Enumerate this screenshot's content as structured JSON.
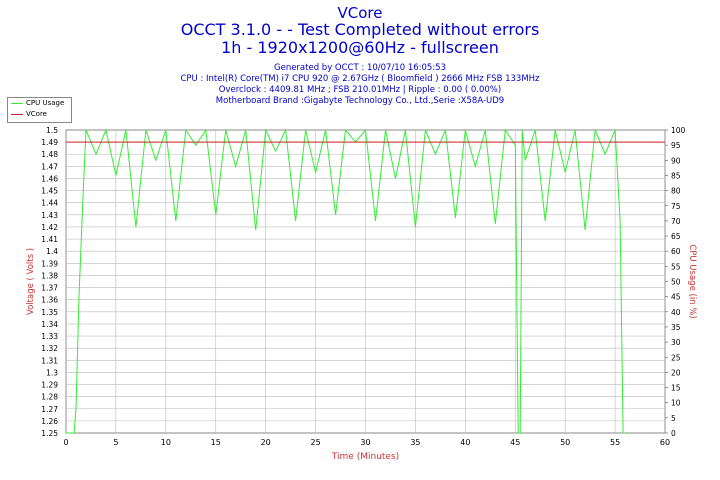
{
  "header": {
    "title": "VCore",
    "subtitle": "OCCT 3.1.0 -  - Test Completed without errors",
    "subtitle2": "1h - 1920x1200@60Hz - fullscreen"
  },
  "info": {
    "generated": "Generated by OCCT : 10/07/10 16:05:53",
    "cpu": "CPU : Intel(R) Core(TM) i7 CPU 920 @ 2.67GHz ( Bloomfield ) 2666 MHz FSB 133MHz",
    "overclock": "Overclock : 4409.81 MHz ; FSB 210.01MHz | Ripple : 0.00 ( 0.00%)",
    "motherboard": "Motherboard Brand :Gigabyte Technology Co., Ltd.,Serie :X58A-UD9"
  },
  "colors": {
    "cpu_usage": "#33ee33",
    "vcore": "#cc2222",
    "axis_label": "#cc3333",
    "grid": "#bbbbbb",
    "title": "#0000cc"
  },
  "chart_data": {
    "type": "line",
    "xlabel": "Time (Minutes)",
    "ylabel": "Voltage ( Volts )",
    "y2label": "CPU Usage (in %)",
    "xlim": [
      0,
      60
    ],
    "ylim": [
      1.25,
      1.5
    ],
    "y2lim": [
      0,
      100
    ],
    "x_ticks": [
      "0",
      "5",
      "10",
      "15",
      "20",
      "25",
      "30",
      "35",
      "40",
      "45",
      "50",
      "55",
      "60"
    ],
    "y_ticks": [
      "1.25",
      "1.26",
      "1.27",
      "1.28",
      "1.29",
      "1.3",
      "1.31",
      "1.32",
      "1.33",
      "1.34",
      "1.35",
      "1.36",
      "1.37",
      "1.38",
      "1.39",
      "1.4",
      "1.41",
      "1.42",
      "1.43",
      "1.44",
      "1.45",
      "1.46",
      "1.47",
      "1.48",
      "1.49",
      "1.5"
    ],
    "y2_ticks": [
      "0",
      "5",
      "10",
      "15",
      "20",
      "25",
      "30",
      "35",
      "40",
      "45",
      "50",
      "55",
      "60",
      "65",
      "70",
      "75",
      "80",
      "85",
      "90",
      "95",
      "100"
    ],
    "grid": true,
    "legend_position": "top-left outside",
    "series": [
      {
        "name": "CPU Usage",
        "axis": "right",
        "x": [
          0,
          0.8,
          1.0,
          1.3,
          1.7,
          2.0,
          3,
          4,
          5,
          6,
          7,
          8,
          9,
          10,
          11,
          12,
          13,
          14,
          15,
          16,
          17,
          18,
          19,
          20,
          21,
          22,
          23,
          24,
          25,
          26,
          27,
          28,
          29,
          30,
          31,
          32,
          33,
          34,
          35,
          36,
          37,
          38,
          39,
          40,
          41,
          42,
          43,
          44,
          45,
          45.3,
          45.5,
          45.7,
          46,
          47,
          48,
          49,
          50,
          51,
          52,
          53,
          54,
          55,
          55.5,
          55.8,
          56
        ],
        "values": [
          0,
          0,
          8,
          45,
          78,
          100,
          92,
          100,
          85,
          100,
          68,
          100,
          90,
          100,
          70,
          100,
          95,
          100,
          72,
          100,
          88,
          100,
          67,
          100,
          93,
          100,
          70,
          100,
          86,
          100,
          72,
          100,
          96,
          100,
          70,
          100,
          84,
          100,
          68,
          100,
          92,
          100,
          71,
          100,
          88,
          100,
          69,
          100,
          95,
          0,
          0,
          100,
          90,
          100,
          70,
          100,
          86,
          100,
          67,
          100,
          92,
          100,
          70,
          0,
          0
        ]
      },
      {
        "name": "VCore",
        "axis": "left",
        "x": [
          0,
          60
        ],
        "values": [
          1.49,
          1.49
        ]
      }
    ]
  }
}
